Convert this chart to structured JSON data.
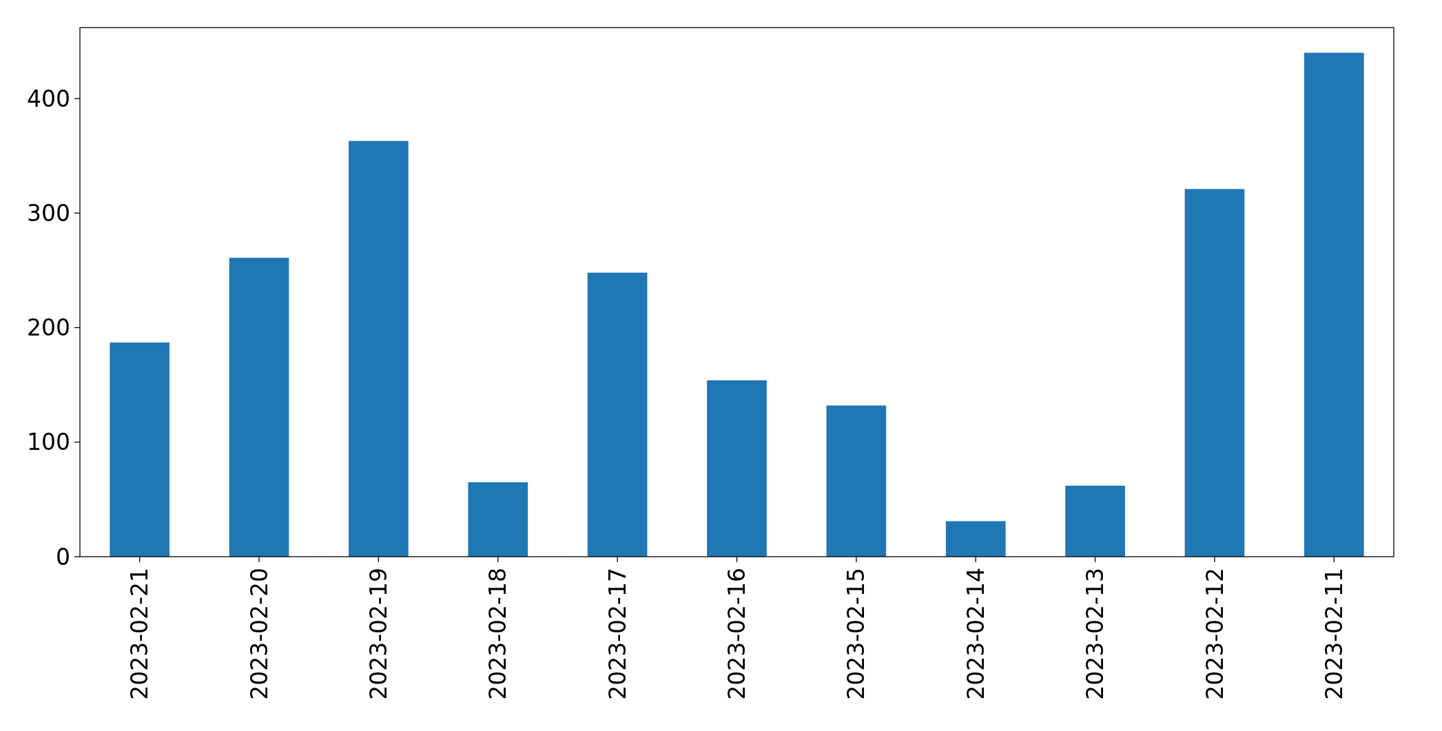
{
  "chart_data": {
    "type": "bar",
    "categories": [
      "2023-02-21",
      "2023-02-20",
      "2023-02-19",
      "2023-02-18",
      "2023-02-17",
      "2023-02-16",
      "2023-02-15",
      "2023-02-14",
      "2023-02-13",
      "2023-02-12",
      "2023-02-11"
    ],
    "values": [
      187,
      261,
      363,
      65,
      248,
      154,
      132,
      31,
      62,
      321,
      440
    ],
    "color": "#1f77b4",
    "ylim": [
      0,
      462
    ],
    "yticks": [
      0,
      100,
      200,
      300,
      400
    ],
    "grid": false
  }
}
